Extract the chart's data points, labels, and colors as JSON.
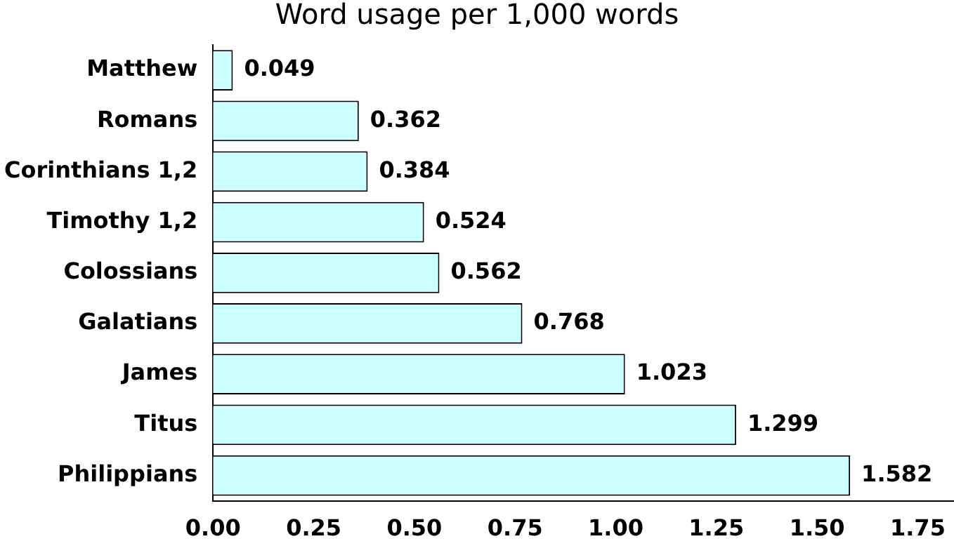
{
  "chart_data": {
    "type": "bar",
    "orientation": "horizontal",
    "title": "Word usage per 1,000 words",
    "categories": [
      "Matthew",
      "Romans",
      "Corinthians 1,2",
      "Timothy 1,2",
      "Colossians",
      "Galatians",
      "James",
      "Titus",
      "Philippians"
    ],
    "values": [
      0.049,
      0.362,
      0.384,
      0.524,
      0.562,
      0.768,
      1.023,
      1.299,
      1.582
    ],
    "color": "#ccffff",
    "data_labels": true,
    "grid": false,
    "legend": false,
    "xlim": [
      0,
      1.84
    ],
    "xticks": [
      {
        "value": 0,
        "label": "0.00"
      },
      {
        "value": 0.25,
        "label": "0.25"
      },
      {
        "value": 0.5,
        "label": "0.50"
      },
      {
        "value": 0.75,
        "label": "0.75"
      },
      {
        "value": 1,
        "label": "1.00"
      },
      {
        "value": 1.25,
        "label": "1.25"
      },
      {
        "value": 1.5,
        "label": "1.50"
      },
      {
        "value": 1.75,
        "label": "1.75"
      }
    ]
  }
}
